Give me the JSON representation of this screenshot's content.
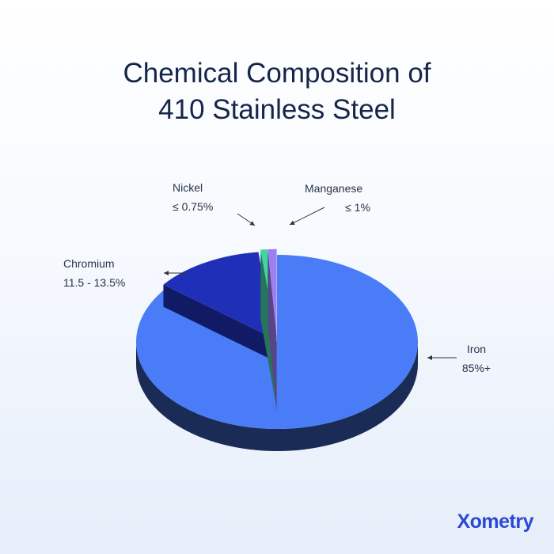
{
  "chart_data": {
    "type": "pie",
    "title": "Chemical Composition of 410 Stainless Steel",
    "categories": [
      "Iron",
      "Chromium",
      "Nickel",
      "Manganese"
    ],
    "values": [
      85,
      12.5,
      0.75,
      1
    ],
    "value_labels": [
      "85%+",
      "11.5 - 13.5%",
      "≤ 0.75%",
      "≤ 1%"
    ],
    "colors": [
      "#4a7cf7",
      "#1f2fb8",
      "#3fd6a2",
      "#9d7ff2"
    ]
  },
  "brand": "Xometry"
}
